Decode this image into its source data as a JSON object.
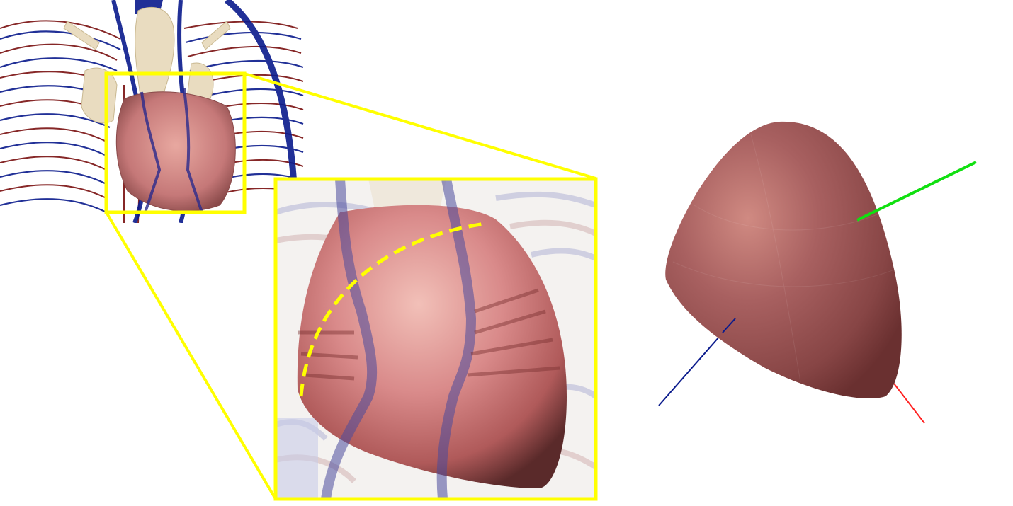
{
  "figure": {
    "panels": [
      {
        "name": "thorax-overview",
        "description_visible": false
      },
      {
        "name": "heart-zoom"
      },
      {
        "name": "ellipsoid-heart-model"
      }
    ],
    "colors": {
      "highlight": "#ffff00",
      "artery": "#7a1010",
      "vein": "#0a1a8c",
      "bone": "#e9dcc0",
      "heart_tissue": "#d98a8a",
      "model_surface": "#9a5656",
      "axis_x": "#ff2020",
      "axis_y": "#10e010",
      "axis_z": "#0a1a8c"
    },
    "icons": {
      "zoom_connector": "zoom-connector-lines",
      "axes": "coordinate-axes"
    }
  }
}
